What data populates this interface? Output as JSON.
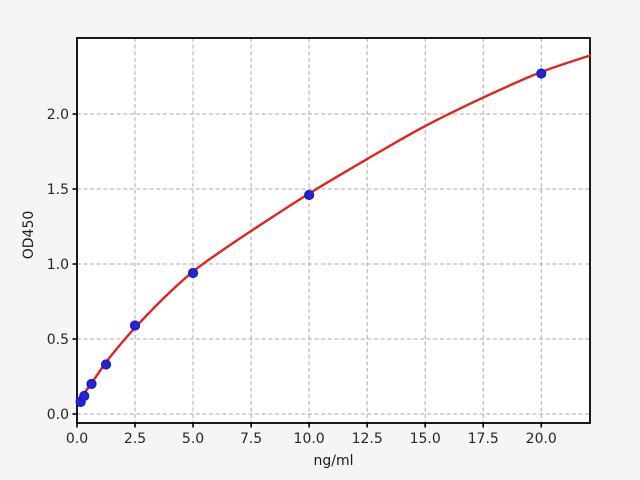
{
  "chart_data": {
    "type": "scatter",
    "title": "",
    "xlabel": "ng/ml",
    "ylabel": "OD450",
    "xlim": [
      0,
      22.1
    ],
    "ylim": [
      -0.06,
      2.507
    ],
    "grid": true,
    "legend": "none",
    "colors": {
      "figure_background": "#f5f5f5",
      "plot_background": "#ffffff",
      "grid": "#aaaaaa",
      "spine": "#000000",
      "tick_text": "#262626",
      "curve": "#e02323",
      "point_fill": "#2424d6",
      "point_edge": "#1818b8"
    },
    "x_ticks": [
      0.0,
      2.5,
      5.0,
      7.5,
      10.0,
      12.5,
      15.0,
      17.5,
      20.0
    ],
    "x_tick_labels": [
      "0.0",
      "2.5",
      "5.0",
      "7.5",
      "10.0",
      "12.5",
      "15.0",
      "17.5",
      "20.0"
    ],
    "y_ticks": [
      0.0,
      0.5,
      1.0,
      1.5,
      2.0
    ],
    "y_tick_labels": [
      "0.0",
      "0.5",
      "1.0",
      "1.5",
      "2.0"
    ],
    "series": [
      {
        "name": "standard-points",
        "kind": "scatter",
        "x": [
          0.156,
          0.312,
          0.625,
          1.25,
          2.5,
          5,
          10,
          20
        ],
        "y": [
          0.08,
          0.12,
          0.2,
          0.33,
          0.59,
          0.94,
          1.46,
          2.27
        ]
      },
      {
        "name": "fit-curve",
        "kind": "line",
        "x": [
          0,
          0.156,
          0.312,
          0.625,
          1.25,
          1.875,
          2.5,
          3.75,
          5,
          6.25,
          7.5,
          10,
          12.5,
          15,
          17.5,
          20,
          22.1
        ],
        "y": [
          0.095,
          0.115,
          0.14,
          0.205,
          0.345,
          0.465,
          0.575,
          0.775,
          0.95,
          1.09,
          1.22,
          1.47,
          1.7,
          1.92,
          2.11,
          2.28,
          2.39
        ]
      }
    ]
  }
}
